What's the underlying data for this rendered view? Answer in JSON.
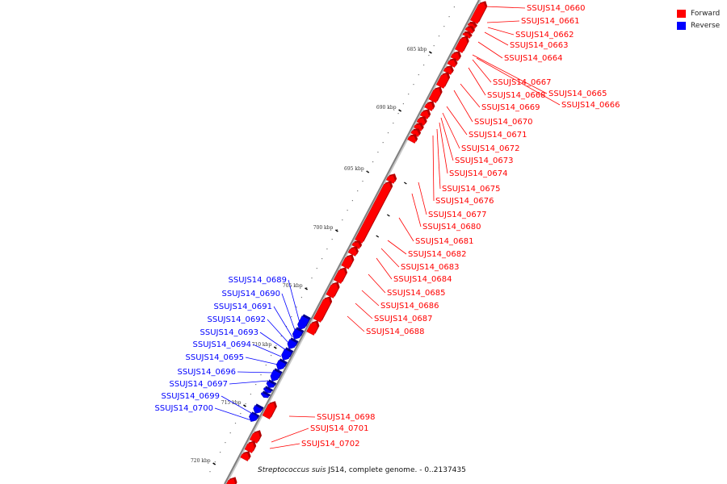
{
  "legend": {
    "items": [
      {
        "label": "Forward",
        "color": "#ff0000"
      },
      {
        "label": "Reverse",
        "color": "#0000ff"
      }
    ]
  },
  "caption": {
    "organism": "Streptococcus suis",
    "rest": " JS14, complete genome. - 0..2137435"
  },
  "colors": {
    "forward": "#ff0000",
    "reverse": "#0000ff",
    "backbone": "#808080"
  },
  "scale": {
    "kbp_ticks": [
      {
        "kbp": 685,
        "label": "685 kbp"
      },
      {
        "kbp": 690,
        "label": "690 kbp"
      },
      {
        "kbp": 695,
        "label": "695 kbp"
      },
      {
        "kbp": 700,
        "label": "700 kbp"
      },
      {
        "kbp": 705,
        "label": "705 kbp"
      },
      {
        "kbp": 710,
        "label": "710 kbp"
      },
      {
        "kbp": 715,
        "label": "715 kbp"
      },
      {
        "kbp": 720,
        "label": "720 kbp"
      }
    ]
  },
  "genes_forward": [
    "SSUJS14_0660",
    "SSUJS14_0661",
    "SSUJS14_0662",
    "SSUJS14_0663",
    "SSUJS14_0664",
    "SSUJS14_0667",
    "SSUJS14_0668",
    "SSUJS14_0665",
    "SSUJS14_0666",
    "SSUJS14_0669",
    "SSUJS14_0670",
    "SSUJS14_0671",
    "SSUJS14_0672",
    "SSUJS14_0673",
    "SSUJS14_0674",
    "SSUJS14_0675",
    "SSUJS14_0676",
    "SSUJS14_0677",
    "SSUJS14_0680",
    "SSUJS14_0681",
    "SSUJS14_0682",
    "SSUJS14_0683",
    "SSUJS14_0684",
    "SSUJS14_0685",
    "SSUJS14_0686",
    "SSUJS14_0687",
    "SSUJS14_0688",
    "SSUJS14_0698",
    "SSUJS14_0701",
    "SSUJS14_0702"
  ],
  "genes_reverse": [
    "SSUJS14_0689",
    "SSUJS14_0690",
    "SSUJS14_0691",
    "SSUJS14_0692",
    "SSUJS14_0693",
    "SSUJS14_0694",
    "SSUJS14_0695",
    "SSUJS14_0696",
    "SSUJS14_0697",
    "SSUJS14_0699",
    "SSUJS14_0700"
  ]
}
